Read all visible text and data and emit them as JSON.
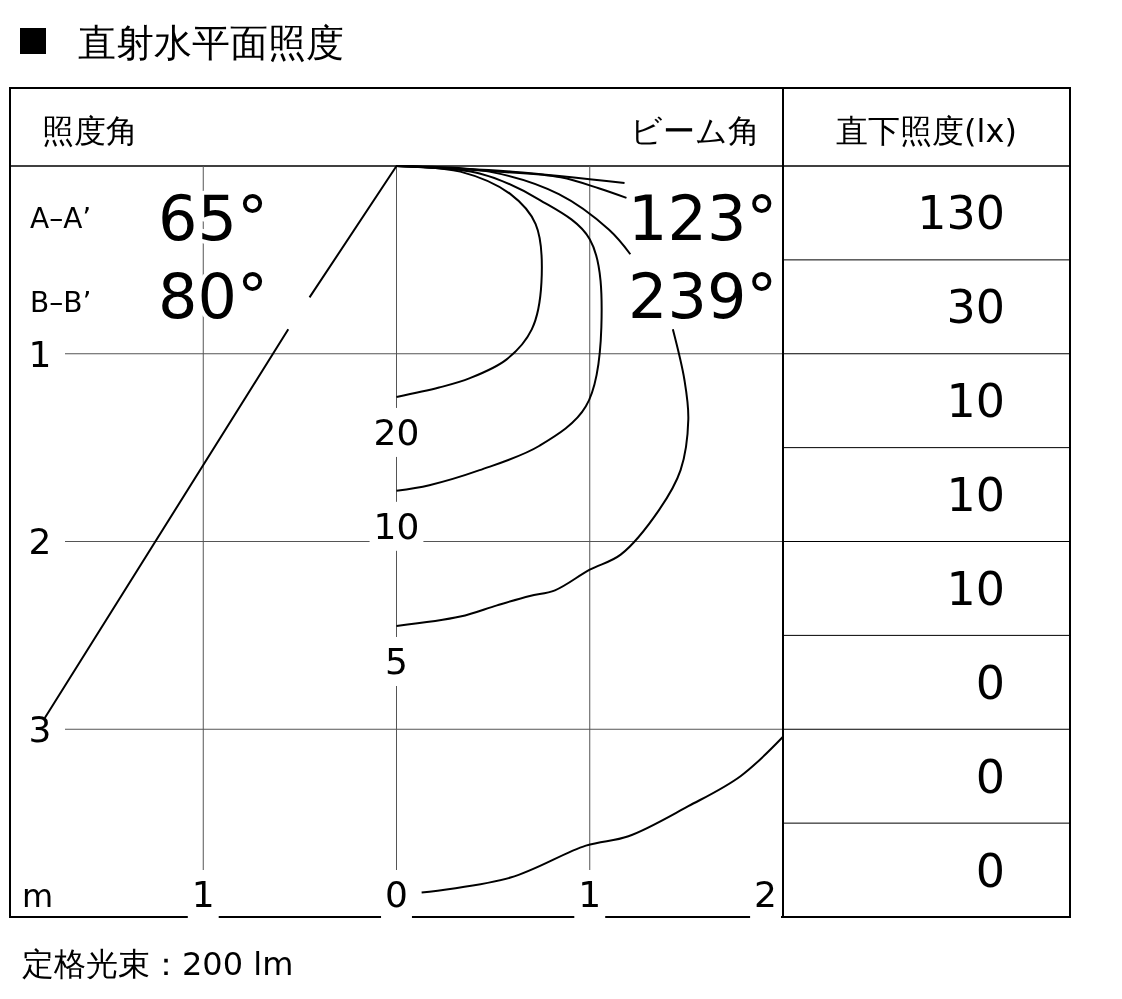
{
  "chart_data": [
    {
      "type": "line",
      "title": "直射水平面照度",
      "xlabel": "m",
      "xlim": [
        -2,
        2
      ],
      "ylim": [
        4,
        0
      ],
      "xticks": [
        {
          "value": -1,
          "label": "1"
        },
        0,
        1,
        2
      ],
      "yticks": [
        1,
        2,
        3
      ],
      "grid": true,
      "series": [
        {
          "name": "20",
          "color": "#000000",
          "x": [
            0,
            0.33,
            0.59,
            0.72,
            0.75,
            0.7,
            0.57,
            0.38,
            0.22,
            0
          ],
          "values": [
            0,
            0.03,
            0.15,
            0.31,
            0.62,
            0.87,
            1.03,
            1.13,
            1.18,
            1.23
          ]
        },
        {
          "name": "10",
          "color": "#000000",
          "x": [
            0,
            0.43,
            0.74,
            1.0,
            1.06,
            0.98,
            0.74,
            0.43,
            0.17,
            0
          ],
          "values": [
            0,
            0.04,
            0.18,
            0.39,
            0.86,
            1.28,
            1.49,
            1.62,
            1.7,
            1.73
          ]
        },
        {
          "name": "5",
          "color": "#000000",
          "x": [
            0,
            0.48,
            0.84,
            1.1,
            1.21,
            1.3,
            1.43,
            1.49,
            1.51,
            1.47,
            1.36,
            1.16,
            1.0,
            0.82,
            0.69,
            0.52,
            0.33,
            0
          ],
          "values": [
            0,
            0.03,
            0.15,
            0.34,
            0.47,
            null,
            0.87,
            1.14,
            1.35,
            1.62,
            1.83,
            2.07,
            2.15,
            2.26,
            2.29,
            2.34,
            2.4,
            2.45
          ]
        },
        {
          "color": "#000000",
          "x": [
            0,
            0.6,
            1.18
          ],
          "values": [
            0,
            0.03,
            0.09
          ]
        },
        {
          "color": "#000000",
          "x": [
            0,
            0.53,
            0.85,
            1.05,
            1.19
          ],
          "values": [
            0,
            0.03,
            0.06,
            0.12,
            0.17
          ]
        },
        {
          "color": "#000000",
          "x": [
            0.13,
            0.59,
            0.98,
            1.2,
            1.51,
            1.78,
            2.0
          ],
          "values": [
            3.87,
            3.79,
            3.62,
            3.57,
            3.41,
            3.25,
            3.04
          ]
        },
        {
          "color": "#000000",
          "x": [
            0,
            -0.45,
            -0.5,
            -0.56,
            -1.82
          ],
          "values": [
            0,
            0.7,
            null,
            0.87,
            2.94
          ]
        }
      ],
      "annotations": [
        "照度角",
        "ビーム角",
        "A–A’",
        "65°",
        "B–B’",
        "80°",
        "123°",
        "239°",
        "定格光束：200 lm"
      ]
    },
    {
      "type": "other",
      "title": "直下照度(lx)",
      "values": [
        130,
        30,
        10,
        10,
        10,
        0,
        0,
        0
      ],
      "data_labels": true
    }
  ]
}
